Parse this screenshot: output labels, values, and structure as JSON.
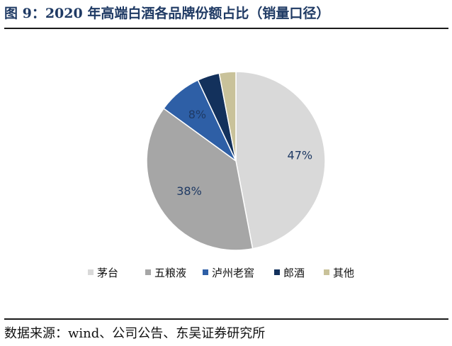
{
  "figure": {
    "title": "图 9：2020 年高端白酒各品牌份额占比（销量口径）",
    "source": "数据来源：wind、公司公告、东吴证券研究所"
  },
  "chart_data": {
    "type": "pie",
    "categories": [
      "茅台",
      "五粮液",
      "泸州老窖",
      "郎酒",
      "其他"
    ],
    "values": [
      47,
      38,
      8,
      4,
      3
    ],
    "data_labels": [
      "47%",
      "38%",
      "8%",
      "",
      ""
    ],
    "colors": [
      "#d9d9d9",
      "#a6a6a6",
      "#2e5fa6",
      "#13315c",
      "#c9c29a"
    ],
    "legend_position": "bottom"
  }
}
